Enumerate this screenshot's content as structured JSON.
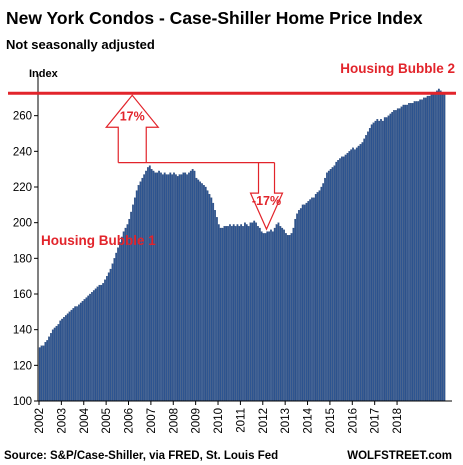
{
  "chart_data": {
    "type": "bar",
    "title": "New York Condos - Case-Shiller Home Price Index",
    "subtitle": "Not seasonally adjusted",
    "ylabel": "Index",
    "ylim": [
      100,
      280
    ],
    "yticks": [
      100,
      120,
      140,
      160,
      180,
      200,
      220,
      240,
      260
    ],
    "x_tick_labels": [
      "2002",
      "2003",
      "2004",
      "2005",
      "2006",
      "2007",
      "2008",
      "2009",
      "2010",
      "2011",
      "2012",
      "2013",
      "2014",
      "2015",
      "2016",
      "2017",
      "2018"
    ],
    "x_start": "2002-01",
    "frequency": "monthly",
    "grid": false,
    "bar_color": "#2e5591",
    "values": [
      130,
      131,
      131,
      133,
      134,
      136,
      138,
      140,
      141,
      142,
      143,
      145,
      146,
      147,
      148,
      149,
      150,
      151,
      152,
      153,
      153,
      154,
      155,
      156,
      157,
      158,
      159,
      160,
      161,
      162,
      163,
      164,
      165,
      165,
      166,
      168,
      170,
      172,
      174,
      177,
      180,
      183,
      186,
      189,
      192,
      195,
      197,
      199,
      202,
      206,
      210,
      214,
      218,
      221,
      223,
      225,
      227,
      229,
      231,
      232,
      230,
      229,
      228,
      228,
      229,
      228,
      227,
      228,
      227,
      227,
      228,
      227,
      228,
      227,
      226,
      227,
      227,
      228,
      228,
      227,
      228,
      229,
      230,
      229,
      225,
      224,
      223,
      222,
      221,
      220,
      218,
      216,
      214,
      211,
      207,
      203,
      199,
      197,
      197,
      198,
      198,
      198,
      199,
      198,
      199,
      198,
      199,
      198,
      199,
      198,
      200,
      199,
      198,
      200,
      200,
      201,
      200,
      198,
      197,
      195,
      194,
      194,
      195,
      195,
      196,
      195,
      197,
      199,
      200,
      198,
      197,
      196,
      194,
      193,
      193,
      194,
      197,
      202,
      205,
      207,
      208,
      210,
      210,
      211,
      212,
      213,
      214,
      214,
      216,
      217,
      218,
      220,
      222,
      225,
      228,
      229,
      230,
      231,
      232,
      234,
      235,
      236,
      237,
      237,
      238,
      239,
      240,
      241,
      242,
      241,
      242,
      243,
      244,
      245,
      247,
      249,
      251,
      253,
      255,
      256,
      257,
      258,
      257,
      258,
      257,
      259,
      259,
      260,
      261,
      262,
      263,
      263,
      264,
      264,
      265,
      266,
      266,
      266,
      267,
      267,
      267,
      268,
      268,
      268,
      269,
      269,
      270,
      270,
      271,
      271,
      272,
      272,
      273,
      274,
      275,
      274,
      273,
      272
    ],
    "reference_line": {
      "value": 272,
      "label": "Housing Bubble 2",
      "color": "#e2242b"
    },
    "annotations": [
      {
        "text": "Housing Bubble 1",
        "color": "#e2242b"
      },
      {
        "text": "17%",
        "direction": "up",
        "from_value": 232,
        "to_value": 272,
        "at": "2006-03"
      },
      {
        "text": "-17%",
        "direction": "down",
        "from_value": 232,
        "to_value": 193,
        "at": "2012-03"
      }
    ]
  },
  "footer": {
    "source": "Source: S&P/Case-Shiller, via FRED,  St. Louis Fed",
    "brand": "WOLFSTREET.com"
  }
}
